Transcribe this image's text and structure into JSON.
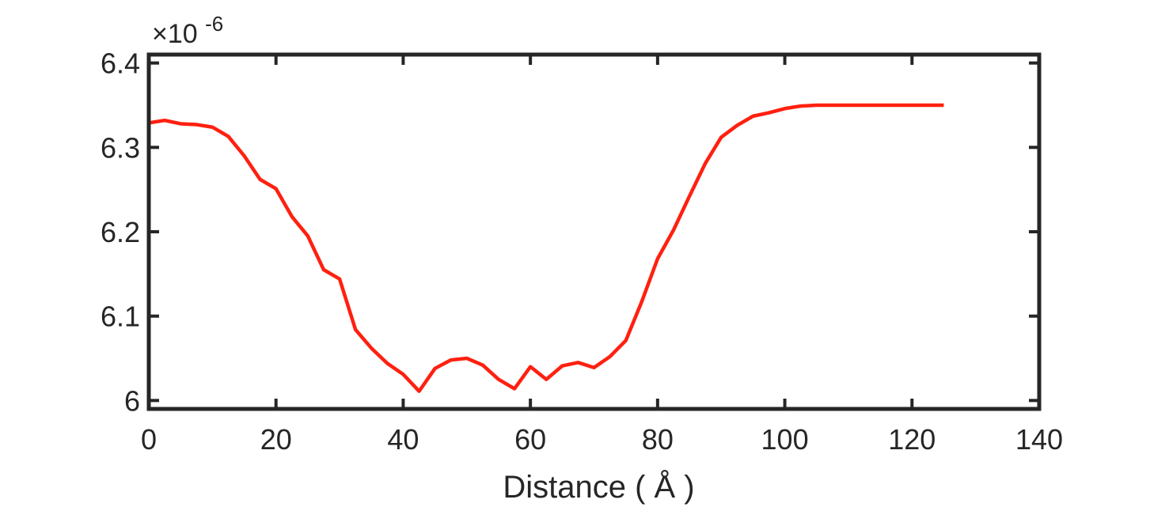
{
  "chart_data": {
    "type": "line",
    "title": "",
    "xlabel": "Distance ( Å )",
    "ylabel": "",
    "y_exponent_label": "×10-6",
    "y_exponent_base": "×10",
    "y_exponent_power": "-6",
    "xlim": [
      0,
      140
    ],
    "ylim": [
      5.99,
      6.41
    ],
    "xticks": [
      0,
      20,
      40,
      60,
      80,
      100,
      120,
      140
    ],
    "xtick_labels": [
      "0",
      "20",
      "40",
      "60",
      "80",
      "100",
      "120",
      "140"
    ],
    "yticks": [
      6.0,
      6.1,
      6.2,
      6.3,
      6.4
    ],
    "ytick_labels": [
      "6",
      "6.1",
      "6.2",
      "6.3",
      "6.4"
    ],
    "grid": false,
    "series": [
      {
        "color": "#ff2010",
        "x": [
          0,
          2.5,
          5,
          7.5,
          10,
          12.5,
          15,
          17.5,
          20,
          22.5,
          25,
          27.5,
          30,
          32.5,
          35,
          37.5,
          40,
          42.5,
          45,
          47.5,
          50,
          52.5,
          55,
          57.5,
          60,
          62.5,
          65,
          67.5,
          70,
          72.5,
          75,
          77.5,
          80,
          82.5,
          85,
          87.5,
          90,
          92.5,
          95,
          97.5,
          100,
          102.5,
          105,
          110,
          115,
          120,
          125
        ],
        "y": [
          6.329,
          6.332,
          6.328,
          6.327,
          6.324,
          6.313,
          6.29,
          6.262,
          6.251,
          6.218,
          6.195,
          6.155,
          6.144,
          6.084,
          6.062,
          6.044,
          6.031,
          6.011,
          6.038,
          6.048,
          6.05,
          6.042,
          6.025,
          6.014,
          6.04,
          6.025,
          6.041,
          6.045,
          6.039,
          6.052,
          6.071,
          6.117,
          6.168,
          6.202,
          6.242,
          6.281,
          6.312,
          6.326,
          6.337,
          6.341,
          6.346,
          6.349,
          6.35,
          6.35,
          6.35,
          6.35,
          6.35
        ]
      }
    ]
  }
}
